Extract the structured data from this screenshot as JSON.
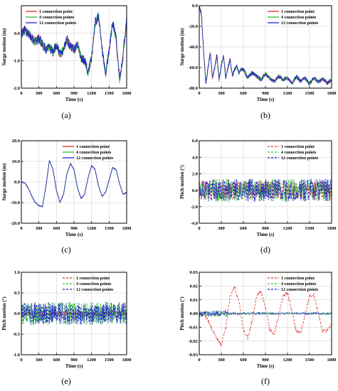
{
  "colors": {
    "red": "#e0302a",
    "green": "#33c13c",
    "blue": "#2226c8",
    "axis": "#000000",
    "grid": "#c8c8c8"
  },
  "chart_data": [
    {
      "id": "a",
      "caption": "(a)",
      "type": "line",
      "ylabel": "Surge motion (m)",
      "xlabel": "Time (s)",
      "xlim": [
        0,
        1800
      ],
      "ylim": [
        -2.0,
        1.0
      ],
      "xticks": [
        "0",
        "300",
        "600",
        "900",
        "1200",
        "1500",
        "1800"
      ],
      "yticks": [
        "-2.0",
        "-1.0",
        "0.0"
      ],
      "ytick_values": [
        -2.0,
        -1.0,
        0.0
      ],
      "legend_position": "top-left",
      "grid": true,
      "series": [
        {
          "name": "1 connection point",
          "color": "red",
          "style": "solid"
        },
        {
          "name": "4 connection points",
          "color": "green",
          "style": "solid"
        },
        {
          "name": "12 connection points",
          "color": "blue",
          "style": "solid"
        }
      ],
      "x": [
        0,
        60,
        120,
        180,
        240,
        300,
        360,
        420,
        480,
        540,
        600,
        660,
        720,
        780,
        840,
        900,
        960,
        1020,
        1080,
        1140,
        1200,
        1260,
        1320,
        1380,
        1440,
        1500,
        1560,
        1620,
        1680,
        1740,
        1800
      ],
      "values": [
        0.0,
        0.1,
        0.0,
        -0.2,
        -0.3,
        -0.2,
        -0.4,
        -0.6,
        -0.5,
        -0.7,
        -0.4,
        -0.8,
        -0.6,
        -0.2,
        -0.5,
        -0.6,
        -0.4,
        -0.9,
        -1.0,
        -1.4,
        -0.9,
        0.4,
        0.6,
        -0.6,
        -1.5,
        -0.6,
        0.4,
        -0.2,
        -1.7,
        -0.8,
        0.5
      ],
      "noise": 0.18
    },
    {
      "id": "b",
      "caption": "(b)",
      "type": "line",
      "ylabel": "Surge motion (m)",
      "xlabel": "Time (s)",
      "xlim": [
        0,
        1800
      ],
      "ylim": [
        -80.0,
        0.0
      ],
      "xticks": [
        "0",
        "300",
        "600",
        "900",
        "1200",
        "1500",
        "1800"
      ],
      "yticks": [
        "-80.0",
        "-60.0",
        "-40.0",
        "-20.0",
        "0.0"
      ],
      "ytick_values": [
        -80.0,
        -60.0,
        -40.0,
        -20.0,
        0.0
      ],
      "legend_position": "top-right",
      "grid": true,
      "series": [
        {
          "name": "1 connection point",
          "color": "red",
          "style": "solid"
        },
        {
          "name": "4 connection points",
          "color": "green",
          "style": "solid"
        },
        {
          "name": "12 connection points",
          "color": "blue",
          "style": "solid"
        }
      ],
      "x": [
        0,
        30,
        60,
        90,
        120,
        150,
        180,
        210,
        240,
        270,
        300,
        330,
        360,
        390,
        420,
        450,
        480,
        510,
        540,
        570,
        600,
        660,
        720,
        780,
        840,
        900,
        960,
        1020,
        1080,
        1140,
        1200,
        1260,
        1320,
        1380,
        1440,
        1500,
        1560,
        1620,
        1680,
        1740,
        1800
      ],
      "values": [
        0,
        -8,
        -45,
        -75,
        -60,
        -45,
        -70,
        -60,
        -48,
        -72,
        -58,
        -48,
        -70,
        -60,
        -52,
        -68,
        -62,
        -58,
        -66,
        -62,
        -62,
        -70,
        -65,
        -68,
        -72,
        -66,
        -70,
        -74,
        -68,
        -72,
        -70,
        -75,
        -69,
        -73,
        -70,
        -76,
        -70,
        -74,
        -71,
        -75,
        -72
      ],
      "noise": 2.0
    },
    {
      "id": "c",
      "caption": "(c)",
      "type": "line",
      "ylabel": "Surge motion (m)",
      "xlabel": "Time (s)",
      "xlim": [
        0,
        1800
      ],
      "ylim": [
        -20.0,
        20.0
      ],
      "xticks": [
        "0",
        "300",
        "600",
        "900",
        "1200",
        "1500",
        "1800"
      ],
      "yticks": [
        "-20.0",
        "-10.0",
        "0.0",
        "10.0",
        "20.0"
      ],
      "ytick_values": [
        -20.0,
        -10.0,
        0.0,
        10.0,
        20.0
      ],
      "legend_position": "top-right",
      "grid": true,
      "series": [
        {
          "name": "1 connection point",
          "color": "red",
          "style": "solid"
        },
        {
          "name": "4 connection points",
          "color": "green",
          "style": "solid"
        },
        {
          "name": "12 connection points",
          "color": "blue",
          "style": "solid"
        }
      ],
      "x": [
        0,
        60,
        120,
        180,
        240,
        300,
        360,
        420,
        480,
        540,
        600,
        660,
        720,
        780,
        840,
        900,
        960,
        1020,
        1080,
        1140,
        1200,
        1260,
        1320,
        1380,
        1440,
        1500,
        1560,
        1620,
        1680,
        1740,
        1800
      ],
      "values": [
        0,
        -0.5,
        -3,
        -7,
        -10,
        -11.5,
        -12,
        -2,
        10.5,
        6,
        -4,
        -10,
        -6,
        4,
        9,
        6,
        -3,
        -8,
        -6,
        2,
        8,
        6,
        -2,
        -7,
        -5,
        1,
        7,
        6,
        -1,
        -6,
        -5
      ],
      "noise": 0.2
    },
    {
      "id": "d",
      "caption": "(d)",
      "type": "line",
      "ylabel": "Pitch motion (°)",
      "xlabel": "Time (s)",
      "xlim": [
        0,
        1800
      ],
      "ylim": [
        -4.0,
        6.0
      ],
      "xticks": [
        "0",
        "300",
        "600",
        "900",
        "1200",
        "1500",
        "1800"
      ],
      "yticks": [
        "-4.0",
        "-2.0",
        "0.0",
        "2.0",
        "4.0",
        "6.0"
      ],
      "ytick_values": [
        -4.0,
        -2.0,
        0.0,
        2.0,
        4.0,
        6.0
      ],
      "legend_position": "top-right",
      "grid": true,
      "series": [
        {
          "name": "1 connection point",
          "color": "red",
          "style": "dashed"
        },
        {
          "name": "4 connection points",
          "color": "green",
          "style": "dashed"
        },
        {
          "name": "12 connection points",
          "color": "blue",
          "style": "dashed"
        }
      ],
      "x": [
        0,
        1800
      ],
      "values": [
        0,
        0
      ],
      "noise": 1.4
    },
    {
      "id": "e",
      "caption": "(e)",
      "type": "line",
      "ylabel": "Pitch motion (°)",
      "xlabel": "Time (s)",
      "xlim": [
        0,
        1800
      ],
      "ylim": [
        -1.0,
        1.0
      ],
      "xticks": [
        "0",
        "300",
        "600",
        "900",
        "1200",
        "1500",
        "1800"
      ],
      "yticks": [
        "-1.0",
        "-0.5",
        "0.0",
        "0.5",
        "1.0"
      ],
      "ytick_values": [
        -1.0,
        -0.5,
        0.0,
        0.5,
        1.0
      ],
      "legend_position": "top-right",
      "grid": true,
      "series": [
        {
          "name": "1 connection point",
          "color": "red",
          "style": "dashed"
        },
        {
          "name": "4 connection points",
          "color": "green",
          "style": "dashed"
        },
        {
          "name": "12 connection points",
          "color": "blue",
          "style": "dashed"
        }
      ],
      "x": [
        0,
        1800
      ],
      "values": [
        0,
        0
      ],
      "noise": 0.28
    },
    {
      "id": "f",
      "caption": "(f)",
      "type": "line",
      "ylabel": "Pitch motion (°)",
      "xlabel": "Time (s)",
      "xlim": [
        0,
        1800
      ],
      "ylim": [
        -0.03,
        0.03
      ],
      "xticks": [
        "0",
        "300",
        "600",
        "900",
        "1200",
        "1500",
        "1800"
      ],
      "yticks": [
        "-0.03",
        "-0.02",
        "-0.01",
        "0.00",
        "0.01",
        "0.02",
        "0.03"
      ],
      "ytick_values": [
        -0.03,
        -0.02,
        -0.01,
        0.0,
        0.01,
        0.02,
        0.03
      ],
      "legend_position": "top-right",
      "grid": true,
      "series": [
        {
          "name": "1 connection point",
          "color": "red",
          "style": "dashed"
        },
        {
          "name": "4 connection points",
          "color": "green",
          "style": "dashed"
        },
        {
          "name": "12 connection points",
          "color": "blue",
          "style": "dashed"
        }
      ],
      "x": [
        0,
        60,
        120,
        180,
        240,
        300,
        360,
        420,
        480,
        540,
        600,
        660,
        720,
        780,
        840,
        900,
        960,
        1020,
        1080,
        1140,
        1200,
        1260,
        1320,
        1380,
        1440,
        1500,
        1560,
        1620,
        1680,
        1740,
        1800
      ],
      "values": [
        0.0,
        0.0,
        -0.005,
        -0.012,
        -0.018,
        -0.023,
        -0.01,
        0.012,
        0.02,
        0.008,
        -0.012,
        -0.018,
        -0.005,
        0.013,
        0.016,
        0.004,
        -0.012,
        -0.015,
        -0.002,
        0.013,
        0.015,
        0.002,
        -0.013,
        -0.014,
        -0.001,
        0.013,
        0.014,
        0.0,
        -0.013,
        -0.012,
        -0.008
      ],
      "noise": 0.0015
    }
  ]
}
